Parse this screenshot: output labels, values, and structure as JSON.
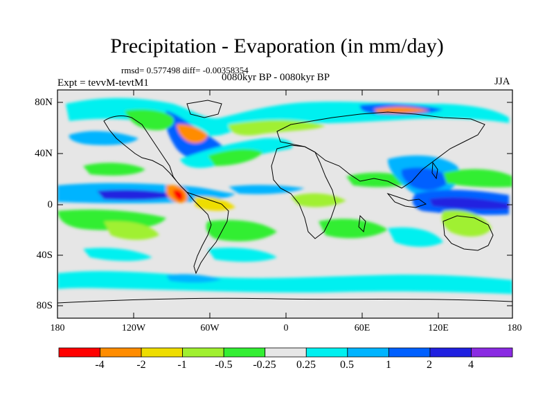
{
  "title": "Precipitation - Evaporation (in mm/day)",
  "stats": "rmsd= 0.577498 diff= -0.00358354",
  "period": "0080kyr BP - 0080kyr BP",
  "experiment": "Expt = tevvM-tevtM1",
  "season": "JJA",
  "map": {
    "projection": "cylindrical equidistant",
    "lat_range": [
      -90,
      90
    ],
    "lon_range": [
      -180,
      180
    ],
    "lat_tick_labels": [
      "80N",
      "40N",
      "0",
      "40S",
      "80S"
    ],
    "lon_tick_labels": [
      "180",
      "120W",
      "60W",
      "0",
      "60E",
      "120E",
      "180"
    ],
    "ocean_background": "#e6e6e6"
  },
  "colorbar": {
    "labels": [
      "-4",
      "-2",
      "-1",
      "-0.5",
      "-0.25",
      "0.25",
      "0.5",
      "1",
      "2",
      "4"
    ],
    "colors": [
      "#ff0000",
      "#ff8c00",
      "#eedd00",
      "#a0f030",
      "#33ee33",
      "#e6e6e6",
      "#00f0f0",
      "#00b4ff",
      "#0060ff",
      "#2020e0",
      "#8a2be2"
    ]
  }
}
